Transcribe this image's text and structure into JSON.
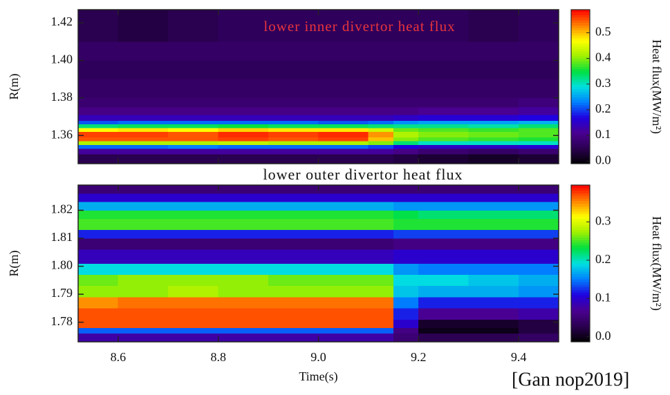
{
  "chart_data": [
    {
      "type": "heatmap",
      "title": "lower inner divertor heat flux",
      "ylabel": "R(m)",
      "colorbar_label": "Heat flux(MW/m²)",
      "x_bins": [
        8.52,
        8.6,
        8.7,
        8.8,
        8.9,
        9.0,
        9.1,
        9.15,
        9.2,
        9.3,
        9.4,
        9.48
      ],
      "y_bins": [
        1.345,
        1.35,
        1.353,
        1.355,
        1.357,
        1.359,
        1.362,
        1.364,
        1.366,
        1.368,
        1.371,
        1.375,
        1.38,
        1.39,
        1.4,
        1.41,
        1.427
      ],
      "values": [
        [
          0.05,
          0.05,
          0.05,
          0.05,
          0.05,
          0.05,
          0.05,
          0.04,
          0.03,
          0.02,
          0.03
        ],
        [
          0.12,
          0.12,
          0.12,
          0.12,
          0.12,
          0.12,
          0.12,
          0.1,
          0.08,
          0.07,
          0.08
        ],
        [
          0.22,
          0.22,
          0.23,
          0.22,
          0.22,
          0.22,
          0.2,
          0.17,
          0.15,
          0.15,
          0.16
        ],
        [
          0.42,
          0.42,
          0.42,
          0.43,
          0.42,
          0.42,
          0.4,
          0.33,
          0.3,
          0.3,
          0.3
        ],
        [
          0.55,
          0.55,
          0.55,
          0.56,
          0.55,
          0.56,
          0.5,
          0.4,
          0.38,
          0.37,
          0.36
        ],
        [
          0.56,
          0.56,
          0.55,
          0.57,
          0.56,
          0.57,
          0.52,
          0.42,
          0.4,
          0.39,
          0.38
        ],
        [
          0.47,
          0.48,
          0.47,
          0.49,
          0.48,
          0.48,
          0.44,
          0.39,
          0.38,
          0.37,
          0.38
        ],
        [
          0.33,
          0.34,
          0.34,
          0.35,
          0.34,
          0.34,
          0.33,
          0.32,
          0.32,
          0.31,
          0.33
        ],
        [
          0.21,
          0.22,
          0.22,
          0.22,
          0.22,
          0.21,
          0.22,
          0.24,
          0.25,
          0.25,
          0.26
        ],
        [
          0.14,
          0.14,
          0.14,
          0.14,
          0.14,
          0.14,
          0.14,
          0.15,
          0.16,
          0.16,
          0.17
        ],
        [
          0.1,
          0.1,
          0.1,
          0.1,
          0.1,
          0.1,
          0.1,
          0.1,
          0.11,
          0.11,
          0.12
        ],
        [
          0.08,
          0.08,
          0.08,
          0.08,
          0.08,
          0.08,
          0.08,
          0.08,
          0.08,
          0.08,
          0.09
        ],
        [
          0.07,
          0.07,
          0.07,
          0.07,
          0.07,
          0.07,
          0.07,
          0.07,
          0.07,
          0.07,
          0.07
        ],
        [
          0.06,
          0.06,
          0.06,
          0.06,
          0.06,
          0.06,
          0.06,
          0.06,
          0.06,
          0.06,
          0.06
        ],
        [
          0.07,
          0.07,
          0.07,
          0.07,
          0.07,
          0.07,
          0.07,
          0.07,
          0.07,
          0.07,
          0.07
        ],
        [
          0.05,
          0.04,
          0.05,
          0.06,
          0.06,
          0.06,
          0.06,
          0.06,
          0.06,
          0.05,
          0.06
        ]
      ],
      "xlim": [
        8.52,
        9.48
      ],
      "ylim": [
        1.345,
        1.427
      ],
      "yticks": [
        1.36,
        1.38,
        {
          "value": 1.4,
          "label": "1.40"
        },
        1.42
      ],
      "xticks": [
        8.6,
        8.8,
        9.0,
        9.2,
        9.4
      ],
      "zlim": [
        -0.01,
        0.59
      ],
      "zticks": [
        {
          "value": 0,
          "label": "0.0"
        },
        0.1,
        0.2,
        0.3,
        0.4,
        0.5
      ],
      "colormap": [
        "#000000",
        "#2a0050",
        "#4a0090",
        "#2000e0",
        "#0080ff",
        "#00e0e0",
        "#00e040",
        "#a0f000",
        "#ffff00",
        "#ff8000",
        "#ff0000"
      ]
    },
    {
      "type": "heatmap",
      "title": "lower outer divertor heat flux",
      "ylabel": "R(m)",
      "xlabel": "Time(s)",
      "colorbar_label": "Heat flux(MW/m²)",
      "x_bins": [
        8.52,
        8.6,
        8.7,
        8.8,
        8.9,
        9.0,
        9.1,
        9.15,
        9.2,
        9.3,
        9.4,
        9.48
      ],
      "y_bins": [
        1.773,
        1.776,
        1.778,
        1.781,
        1.785,
        1.789,
        1.793,
        1.797,
        1.801,
        1.806,
        1.81,
        1.813,
        1.817,
        1.82,
        1.823,
        1.826,
        1.829
      ],
      "values": [
        [
          0.08,
          0.08,
          0.08,
          0.08,
          0.08,
          0.08,
          0.08,
          0.05,
          0.03,
          0.03,
          0.04
        ],
        [
          0.14,
          0.14,
          0.14,
          0.14,
          0.14,
          0.14,
          0.14,
          0.06,
          0.0,
          0.0,
          0.02
        ],
        [
          0.37,
          0.37,
          0.37,
          0.37,
          0.37,
          0.37,
          0.37,
          0.1,
          0.01,
          0.01,
          0.02
        ],
        [
          0.37,
          0.37,
          0.37,
          0.37,
          0.37,
          0.37,
          0.37,
          0.12,
          0.07,
          0.07,
          0.08
        ],
        [
          0.35,
          0.36,
          0.36,
          0.36,
          0.36,
          0.36,
          0.36,
          0.15,
          0.12,
          0.12,
          0.12
        ],
        [
          0.27,
          0.27,
          0.28,
          0.27,
          0.27,
          0.27,
          0.27,
          0.18,
          0.17,
          0.17,
          0.16
        ],
        [
          0.26,
          0.27,
          0.27,
          0.27,
          0.26,
          0.26,
          0.26,
          0.19,
          0.19,
          0.18,
          0.17
        ],
        [
          0.19,
          0.19,
          0.19,
          0.19,
          0.19,
          0.19,
          0.19,
          0.16,
          0.15,
          0.15,
          0.15
        ],
        [
          0.09,
          0.09,
          0.09,
          0.09,
          0.09,
          0.09,
          0.09,
          0.1,
          0.1,
          0.1,
          0.1
        ],
        [
          0.05,
          0.05,
          0.05,
          0.05,
          0.05,
          0.05,
          0.05,
          0.06,
          0.06,
          0.06,
          0.06
        ],
        [
          0.12,
          0.12,
          0.12,
          0.12,
          0.12,
          0.12,
          0.12,
          0.13,
          0.13,
          0.13,
          0.13
        ],
        [
          0.25,
          0.25,
          0.25,
          0.25,
          0.25,
          0.25,
          0.25,
          0.24,
          0.24,
          0.24,
          0.24
        ],
        [
          0.24,
          0.24,
          0.24,
          0.24,
          0.24,
          0.24,
          0.24,
          0.23,
          0.22,
          0.22,
          0.22
        ],
        [
          0.17,
          0.17,
          0.17,
          0.17,
          0.17,
          0.17,
          0.17,
          0.16,
          0.16,
          0.16,
          0.16
        ],
        [
          0.1,
          0.1,
          0.1,
          0.1,
          0.1,
          0.1,
          0.1,
          0.1,
          0.1,
          0.1,
          0.1
        ],
        [
          0.05,
          0.05,
          0.05,
          0.05,
          0.05,
          0.05,
          0.05,
          0.05,
          0.05,
          0.05,
          0.05
        ]
      ],
      "xlim": [
        8.52,
        9.48
      ],
      "ylim": [
        1.773,
        1.829
      ],
      "yticks": [
        1.78,
        1.79,
        {
          "value": 1.8,
          "label": "1.80"
        },
        1.81,
        1.82
      ],
      "xticks": [
        8.6,
        8.8,
        {
          "value": 9,
          "label": "9.0"
        },
        9.2,
        9.4
      ],
      "zlim": [
        -0.013,
        0.396
      ],
      "zticks": [
        {
          "value": 0,
          "label": "0.0"
        },
        0.1,
        0.2,
        0.3
      ],
      "colormap": [
        "#000000",
        "#2a0050",
        "#4a0090",
        "#2000e0",
        "#0080ff",
        "#00e0e0",
        "#00e040",
        "#a0f000",
        "#ffff00",
        "#ff8000",
        "#ff0000"
      ]
    }
  ],
  "caption": "[Gan nop2019]"
}
